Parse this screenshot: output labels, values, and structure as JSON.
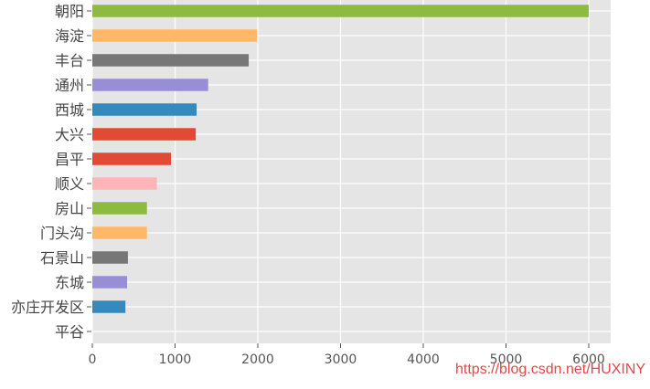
{
  "chart_data": {
    "type": "bar",
    "orientation": "horizontal",
    "categories": [
      "朝阳",
      "海淀",
      "丰台",
      "通州",
      "西城",
      "大兴",
      "昌平",
      "顺义",
      "房山",
      "门头沟",
      "石景山",
      "东城",
      "亦庄开发区",
      "平谷"
    ],
    "values": [
      6000,
      1990,
      1890,
      1400,
      1260,
      1250,
      950,
      780,
      660,
      660,
      430,
      420,
      400,
      0
    ],
    "colors": [
      "#8eba42",
      "#ffb867",
      "#777777",
      "#988ed5",
      "#348abd",
      "#e24a33",
      "#e24a33",
      "#ffb5b8",
      "#8eba42",
      "#ffb867",
      "#777777",
      "#988ed5",
      "#348abd",
      "#e24a33"
    ],
    "xticks": [
      0,
      1000,
      2000,
      3000,
      4000,
      5000,
      6000
    ],
    "xlim": [
      0,
      6300
    ],
    "grid": true,
    "background": "#e5e5e5",
    "title": "",
    "xlabel": "",
    "ylabel": ""
  },
  "watermark": "https://blog.csdn.net/HUXINY"
}
